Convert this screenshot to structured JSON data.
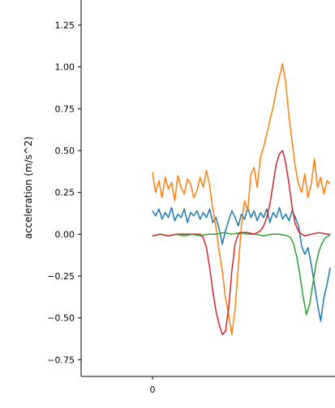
{
  "chart_data": {
    "type": "line",
    "title": "",
    "xlabel": "",
    "ylabel": "acceleration (m/s^2)",
    "xlim": [
      -0.45,
      1.15
    ],
    "ylim": [
      -0.85,
      1.4
    ],
    "x_ticks": [
      {
        "value": 0,
        "label": "0"
      }
    ],
    "y_ticks": [
      {
        "value": -0.75,
        "label": "−0.75"
      },
      {
        "value": -0.5,
        "label": "−0.50"
      },
      {
        "value": -0.25,
        "label": "−0.25"
      },
      {
        "value": 0.0,
        "label": "0.00"
      },
      {
        "value": 0.25,
        "label": "0.25"
      },
      {
        "value": 0.5,
        "label": "0.50"
      },
      {
        "value": 0.75,
        "label": "0.75"
      },
      {
        "value": 1.0,
        "label": "1.00"
      },
      {
        "value": 1.25,
        "label": "1.25"
      }
    ],
    "grid": false,
    "series": [
      {
        "color": "#1f77b4",
        "x": [
          0.0,
          0.02,
          0.04,
          0.06,
          0.08,
          0.1,
          0.12,
          0.14,
          0.16,
          0.18,
          0.2,
          0.22,
          0.24,
          0.26,
          0.28,
          0.3,
          0.32,
          0.34,
          0.36,
          0.38,
          0.4,
          0.42,
          0.44,
          0.46,
          0.48,
          0.5,
          0.52,
          0.54,
          0.56,
          0.58,
          0.6,
          0.62,
          0.64,
          0.66,
          0.68,
          0.7,
          0.72,
          0.74,
          0.76,
          0.78,
          0.8,
          0.82,
          0.84,
          0.86,
          0.88,
          0.9,
          0.92,
          0.94,
          0.96,
          0.98,
          1.0,
          1.02,
          1.04,
          1.06,
          1.08,
          1.1,
          1.12
        ],
        "y": [
          0.14,
          0.11,
          0.15,
          0.09,
          0.13,
          0.1,
          0.16,
          0.08,
          0.12,
          0.1,
          0.15,
          0.07,
          0.13,
          0.11,
          0.14,
          0.09,
          0.13,
          0.1,
          0.15,
          0.07,
          0.1,
          0.03,
          -0.06,
          0.02,
          0.08,
          0.14,
          0.1,
          0.05,
          0.12,
          0.09,
          0.16,
          0.1,
          0.14,
          0.08,
          0.13,
          0.1,
          0.15,
          0.07,
          0.13,
          0.1,
          0.16,
          0.09,
          0.12,
          0.08,
          0.14,
          0.1,
          0.05,
          -0.07,
          -0.12,
          -0.08,
          -0.18,
          -0.3,
          -0.42,
          -0.52,
          -0.38,
          -0.3,
          -0.2
        ]
      },
      {
        "color": "#ff7f0e",
        "x": [
          0.0,
          0.02,
          0.04,
          0.06,
          0.08,
          0.1,
          0.12,
          0.14,
          0.16,
          0.18,
          0.2,
          0.22,
          0.24,
          0.26,
          0.28,
          0.3,
          0.32,
          0.34,
          0.36,
          0.38,
          0.4,
          0.42,
          0.44,
          0.46,
          0.48,
          0.5,
          0.52,
          0.54,
          0.56,
          0.58,
          0.6,
          0.62,
          0.64,
          0.66,
          0.68,
          0.7,
          0.72,
          0.74,
          0.76,
          0.78,
          0.8,
          0.82,
          0.84,
          0.86,
          0.88,
          0.9,
          0.92,
          0.94,
          0.96,
          0.98,
          1.0,
          1.02,
          1.04,
          1.06,
          1.08,
          1.1,
          1.12
        ],
        "y": [
          0.37,
          0.25,
          0.32,
          0.22,
          0.34,
          0.27,
          0.31,
          0.2,
          0.35,
          0.28,
          0.24,
          0.33,
          0.3,
          0.22,
          0.26,
          0.34,
          0.28,
          0.38,
          0.29,
          0.15,
          0.04,
          -0.1,
          -0.22,
          -0.38,
          -0.48,
          -0.6,
          -0.45,
          -0.2,
          0.05,
          0.2,
          0.14,
          0.36,
          0.4,
          0.28,
          0.46,
          0.52,
          0.6,
          0.68,
          0.76,
          0.86,
          0.94,
          1.02,
          0.9,
          0.7,
          0.55,
          0.4,
          0.3,
          0.25,
          0.36,
          0.22,
          0.3,
          0.45,
          0.28,
          0.34,
          0.24,
          0.32,
          0.3
        ]
      },
      {
        "color": "#2ca02c",
        "x": [
          0.0,
          0.05,
          0.1,
          0.15,
          0.2,
          0.25,
          0.3,
          0.35,
          0.4,
          0.45,
          0.5,
          0.55,
          0.6,
          0.65,
          0.7,
          0.75,
          0.8,
          0.85,
          0.87,
          0.89,
          0.91,
          0.93,
          0.95,
          0.97,
          0.99,
          1.01,
          1.03,
          1.05,
          1.07,
          1.09,
          1.11,
          1.12
        ],
        "y": [
          -0.01,
          0.0,
          -0.01,
          0.0,
          -0.01,
          0.0,
          -0.01,
          0.0,
          0.0,
          0.01,
          0.0,
          0.01,
          0.0,
          0.0,
          -0.01,
          0.0,
          0.0,
          -0.01,
          -0.02,
          -0.06,
          -0.14,
          -0.25,
          -0.38,
          -0.48,
          -0.42,
          -0.3,
          -0.18,
          -0.1,
          -0.05,
          -0.02,
          -0.01,
          0.0
        ]
      },
      {
        "color": "#d62728",
        "x": [
          0.0,
          0.05,
          0.1,
          0.15,
          0.2,
          0.25,
          0.3,
          0.32,
          0.34,
          0.36,
          0.38,
          0.4,
          0.42,
          0.44,
          0.46,
          0.48,
          0.5,
          0.52,
          0.54,
          0.56,
          0.6,
          0.64,
          0.68,
          0.7,
          0.72,
          0.74,
          0.76,
          0.78,
          0.8,
          0.82,
          0.84,
          0.86,
          0.88,
          0.9,
          0.92,
          0.94,
          0.96,
          1.0,
          1.05,
          1.1,
          1.12
        ],
        "y": [
          -0.01,
          0.0,
          -0.01,
          0.0,
          0.0,
          0.0,
          0.0,
          -0.02,
          -0.08,
          -0.2,
          -0.34,
          -0.46,
          -0.54,
          -0.6,
          -0.58,
          -0.44,
          -0.22,
          -0.06,
          0.0,
          0.01,
          0.01,
          0.0,
          0.02,
          0.05,
          0.1,
          0.18,
          0.3,
          0.42,
          0.48,
          0.5,
          0.42,
          0.3,
          0.16,
          0.06,
          0.02,
          0.0,
          -0.01,
          0.0,
          0.01,
          0.0,
          0.0
        ]
      }
    ]
  }
}
